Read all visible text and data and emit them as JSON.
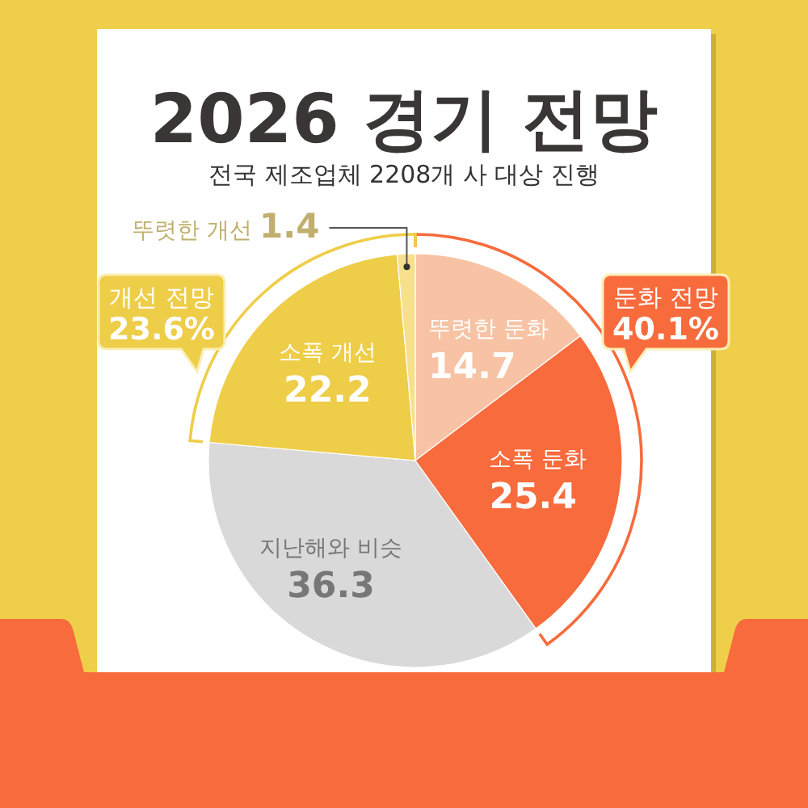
{
  "chart_data": {
    "type": "pie",
    "title": "2026 경기 전망",
    "subtitle": "전국 제조업체 2208개 사 대상 진행",
    "categories": [
      "뚜렷한 둔화",
      "소폭 둔화",
      "지난해와 비슷",
      "소폭 개선",
      "뚜렷한 개선"
    ],
    "values": [
      14.7,
      25.4,
      36.3,
      22.2,
      1.4
    ],
    "colors": [
      "#f7c3a4",
      "#f76b3c",
      "#d9d9d9",
      "#eecd48",
      "#f7e08c"
    ],
    "data_labels": true,
    "annotations": [
      "둔화 전망 40.1%",
      "개선 전망 23.6%"
    ]
  }
}
